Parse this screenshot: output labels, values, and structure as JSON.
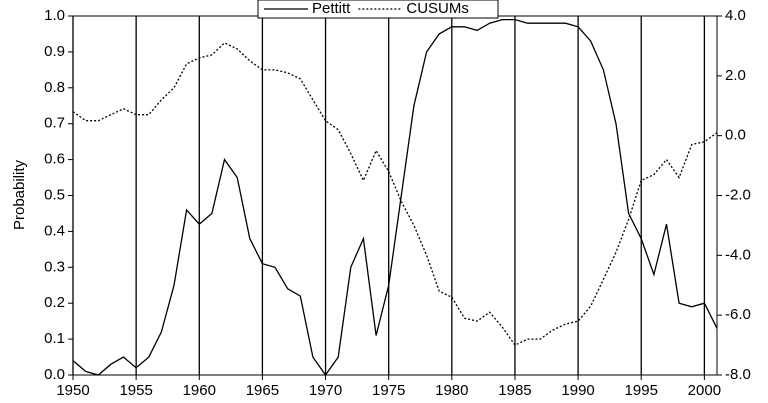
{
  "chart_data": {
    "type": "line",
    "y_label": "Probability",
    "x": [
      1950,
      1951,
      1952,
      1953,
      1954,
      1955,
      1956,
      1957,
      1958,
      1959,
      1960,
      1961,
      1962,
      1963,
      1964,
      1965,
      1966,
      1967,
      1968,
      1969,
      1970,
      1971,
      1972,
      1973,
      1974,
      1975,
      1976,
      1977,
      1978,
      1979,
      1980,
      1981,
      1982,
      1983,
      1984,
      1985,
      1986,
      1987,
      1988,
      1989,
      1990,
      1991,
      1992,
      1993,
      1994,
      1995,
      1996,
      1997,
      1998,
      1999,
      2000,
      2001
    ],
    "series": [
      {
        "name": "Pettitt",
        "color": "#000000",
        "style": "solid",
        "axis": "y",
        "values": [
          0.04,
          0.01,
          0.0,
          0.03,
          0.05,
          0.02,
          0.05,
          0.12,
          0.25,
          0.46,
          0.42,
          0.45,
          0.6,
          0.55,
          0.38,
          0.31,
          0.3,
          0.24,
          0.22,
          0.05,
          0.0,
          0.05,
          0.3,
          0.38,
          0.11,
          0.25,
          0.5,
          0.75,
          0.9,
          0.95,
          0.97,
          0.97,
          0.96,
          0.98,
          0.99,
          0.99,
          0.98,
          0.98,
          0.98,
          0.98,
          0.97,
          0.93,
          0.85,
          0.7,
          0.45,
          0.38,
          0.28,
          0.42,
          0.2,
          0.19,
          0.2,
          0.13
        ]
      },
      {
        "name": "CUSUMs",
        "color": "#000000",
        "style": "dotted",
        "axis": "y2",
        "values": [
          0.8,
          0.5,
          0.5,
          0.7,
          0.9,
          0.7,
          0.7,
          1.2,
          1.6,
          2.4,
          2.6,
          2.7,
          3.1,
          2.9,
          2.5,
          2.2,
          2.2,
          2.1,
          1.9,
          1.2,
          0.5,
          0.2,
          -0.6,
          -1.5,
          -0.5,
          -1.2,
          -2.2,
          -3.0,
          -4.0,
          -5.2,
          -5.4,
          -6.1,
          -6.2,
          -5.9,
          -6.4,
          -7.0,
          -6.8,
          -6.8,
          -6.5,
          -6.3,
          -6.2,
          -5.7,
          -4.8,
          -3.9,
          -2.8,
          -1.5,
          -1.3,
          -0.8,
          -1.4,
          -0.3,
          -0.2,
          0.1
        ]
      }
    ],
    "xlim": [
      1950,
      2001
    ],
    "xticks": [
      1950,
      1955,
      1960,
      1965,
      1970,
      1975,
      1980,
      1985,
      1990,
      1995,
      2000
    ],
    "ylim": [
      0,
      1
    ],
    "yticks": [
      {
        "value": 0,
        "label": "0.0"
      },
      0.1,
      0.2,
      0.3,
      0.4,
      0.5,
      0.6,
      0.7,
      0.8,
      0.9,
      {
        "value": 1,
        "label": "1.0"
      }
    ],
    "y2lim": [
      -8,
      4
    ],
    "y2ticks": [
      {
        "value": -8,
        "label": "-8.0"
      },
      {
        "value": -6,
        "label": "-6.0"
      },
      {
        "value": -4,
        "label": "-4.0"
      },
      {
        "value": -2,
        "label": "-2.0"
      },
      {
        "value": 0,
        "label": "0.0"
      },
      {
        "value": 2,
        "label": "2.0"
      },
      {
        "value": 4,
        "label": "4.0"
      }
    ],
    "grid": "x",
    "legend": "top"
  }
}
